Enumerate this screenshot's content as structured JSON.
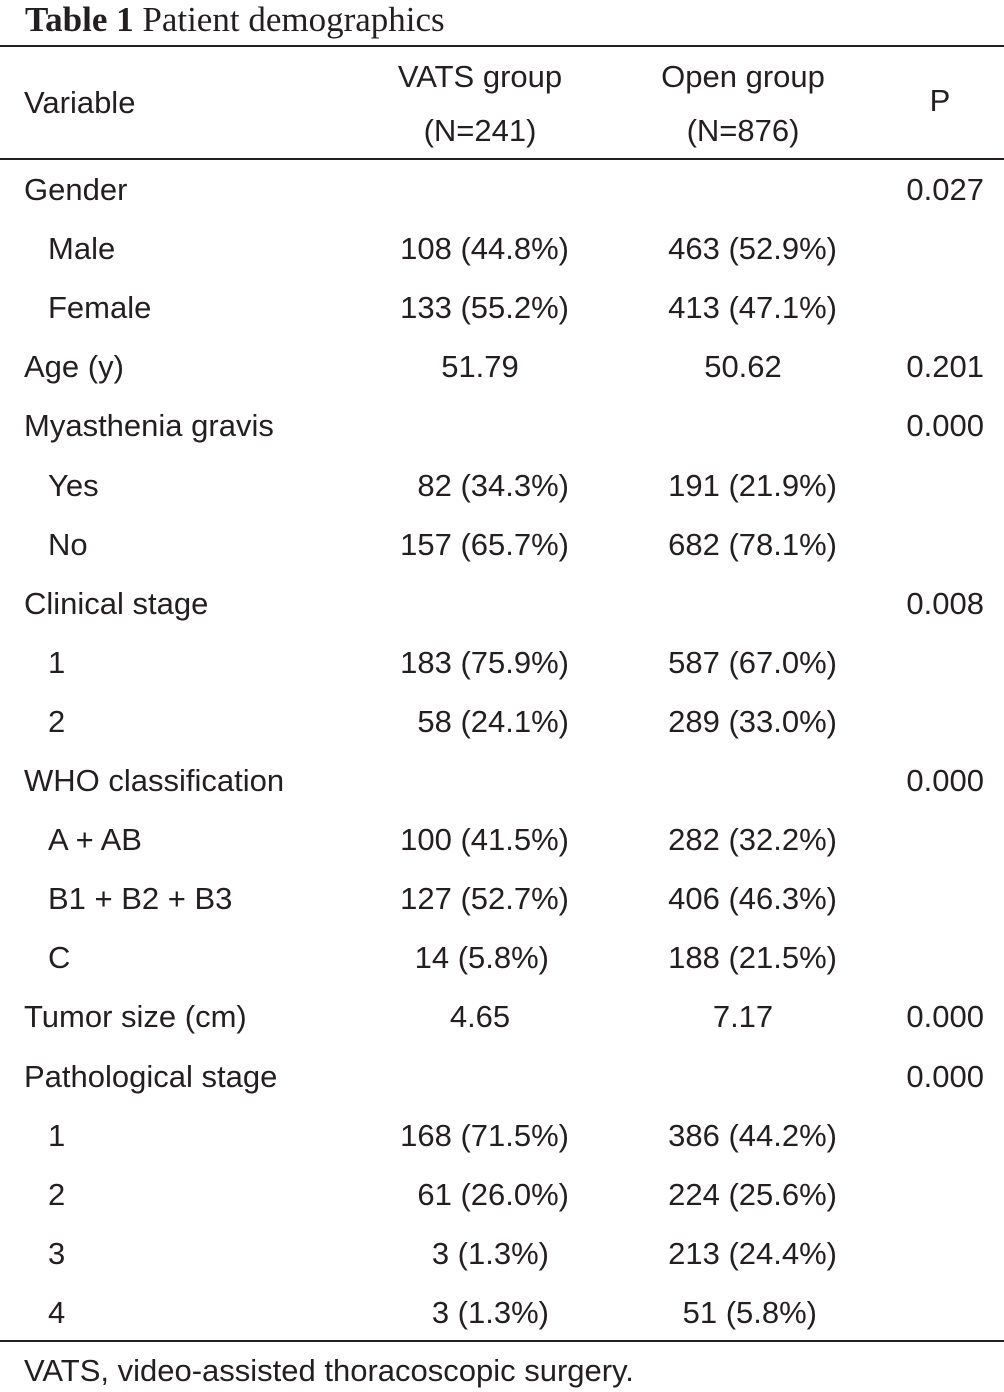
{
  "table": {
    "label": "Table 1",
    "title": "Patient demographics",
    "headers": {
      "variable": "Variable",
      "vats_line1": "VATS group",
      "vats_line2": "(N=241)",
      "open_line1": "Open group",
      "open_line2": "(N=876)",
      "p": "P"
    },
    "rows": [
      {
        "variable": "Gender",
        "vats": "",
        "open": "",
        "p": "0.027",
        "sub": false
      },
      {
        "variable": "Male",
        "vats": "108 (44.8%)",
        "open": "463 (52.9%)",
        "p": "",
        "sub": true
      },
      {
        "variable": "Female",
        "vats": "133 (55.2%)",
        "open": "413 (47.1%)",
        "p": "",
        "sub": true
      },
      {
        "variable": "Age (y)",
        "vats": "51.79",
        "open": "50.62",
        "p": "0.201",
        "sub": false,
        "center": true
      },
      {
        "variable": "Myasthenia gravis",
        "vats": "",
        "open": "",
        "p": "0.000",
        "sub": false
      },
      {
        "variable": "Yes",
        "vats": "82 (34.3%)",
        "open": "191 (21.9%)",
        "p": "",
        "sub": true
      },
      {
        "variable": "No",
        "vats": "157 (65.7%)",
        "open": "682 (78.1%)",
        "p": "",
        "sub": true
      },
      {
        "variable": "Clinical stage",
        "vats": "",
        "open": "",
        "p": "0.008",
        "sub": false
      },
      {
        "variable": "1",
        "vats": "183 (75.9%)",
        "open": "587 (67.0%)",
        "p": "",
        "sub": true
      },
      {
        "variable": "2",
        "vats": "58 (24.1%)",
        "open": "289 (33.0%)",
        "p": "",
        "sub": true
      },
      {
        "variable": "WHO classification",
        "vats": "",
        "open": "",
        "p": "0.000",
        "sub": false
      },
      {
        "variable": "A + AB",
        "vats": "100 (41.5%)",
        "open": "282 (32.2%)",
        "p": "",
        "sub": true
      },
      {
        "variable": "B1 + B2 + B3",
        "vats": "127 (52.7%)",
        "open": "406 (46.3%)",
        "p": "",
        "sub": true
      },
      {
        "variable": "C",
        "vats": "14 (5.8%)",
        "open": "188 (21.5%)",
        "p": "",
        "sub": true,
        "vats_shift": true
      },
      {
        "variable": "Tumor size (cm)",
        "vats": "4.65",
        "open": "7.17",
        "p": "0.000",
        "sub": false,
        "center": true
      },
      {
        "variable": "Pathological stage",
        "vats": "",
        "open": "",
        "p": "0.000",
        "sub": false
      },
      {
        "variable": "1",
        "vats": "168 (71.5%)",
        "open": "386 (44.2%)",
        "p": "",
        "sub": true
      },
      {
        "variable": "2",
        "vats": "61 (26.0%)",
        "open": "224 (25.6%)",
        "p": "",
        "sub": true
      },
      {
        "variable": "3",
        "vats": "3 (1.3%)",
        "open": "213 (24.4%)",
        "p": "",
        "sub": true,
        "vats_shift": true
      },
      {
        "variable": "4",
        "vats": "3 (1.3%)",
        "open": "51 (5.8%)",
        "p": "",
        "sub": true,
        "vats_shift": true,
        "open_shift": true
      }
    ],
    "footnote": "VATS, video-assisted thoracoscopic surgery."
  }
}
